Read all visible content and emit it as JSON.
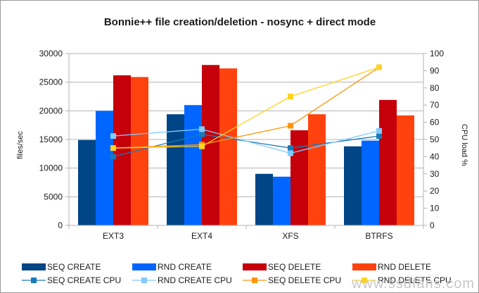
{
  "chart_data": {
    "type": "bar",
    "title": "Bonnie++ file creation/deletion - nosync + direct mode",
    "categories": [
      "EXT3",
      "EXT4",
      "XFS",
      "BTRFS"
    ],
    "ylabel": "files/sec",
    "y2label": "CPU load %",
    "ylim": [
      0,
      30000
    ],
    "y2lim": [
      0,
      100
    ],
    "yticks": [
      0,
      5000,
      10000,
      15000,
      20000,
      25000,
      30000
    ],
    "y2ticks": [
      0,
      10,
      20,
      30,
      40,
      50,
      60,
      70,
      80,
      90,
      100
    ],
    "grid": true,
    "legend_position": "bottom",
    "bar_series": [
      {
        "name": "SEQ CREATE",
        "color": "#004586",
        "values": [
          14900,
          19400,
          9000,
          13800
        ]
      },
      {
        "name": "RND CREATE",
        "color": "#0066ff",
        "values": [
          20000,
          21000,
          8500,
          14800
        ]
      },
      {
        "name": "SEQ DELETE",
        "color": "#c5000b",
        "values": [
          26200,
          28000,
          16600,
          21900
        ]
      },
      {
        "name": "RND DELETE",
        "color": "#ff420e",
        "values": [
          25900,
          27400,
          19400,
          19200
        ]
      }
    ],
    "line_series": [
      {
        "name": "SEQ CREATE CPU",
        "color": "#1a7ab8",
        "values": [
          40,
          53,
          45,
          52
        ]
      },
      {
        "name": "RND CREATE CPU",
        "color": "#83caff",
        "values": [
          52,
          56,
          42,
          55
        ]
      },
      {
        "name": "SEQ DELETE CPU",
        "color": "#ff950e",
        "values": [
          45,
          47,
          58,
          92
        ]
      },
      {
        "name": "RND DELETE CPU",
        "color": "#ffd320",
        "values": [
          45,
          46,
          75,
          92
        ]
      }
    ]
  },
  "watermark": "www.ssdfans.com"
}
